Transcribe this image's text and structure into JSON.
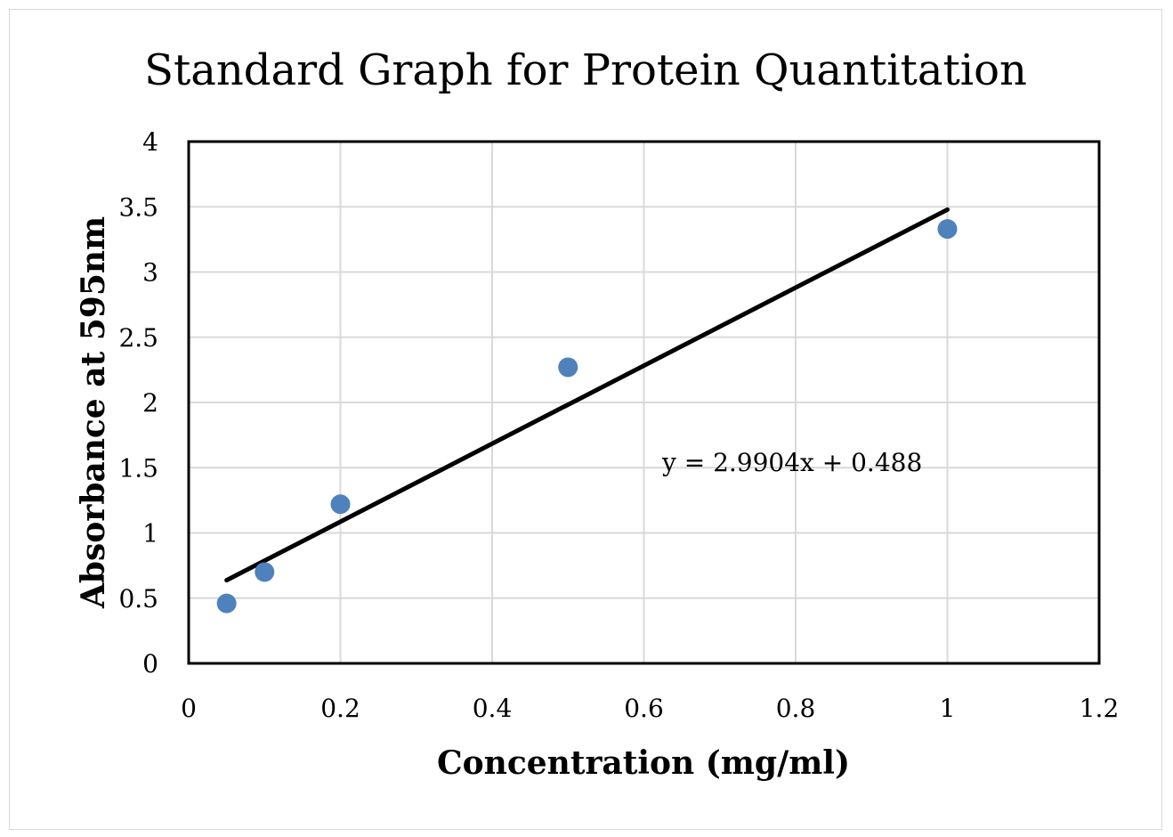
{
  "chart_data": {
    "type": "scatter",
    "title": "Standard Graph for Protein Quantitation",
    "xlabel": "Concentration (mg/ml)",
    "ylabel": "Absorbance at 595nm",
    "xlim": [
      0,
      1.2
    ],
    "ylim": [
      0,
      4
    ],
    "xticks": [
      0,
      0.2,
      0.4,
      0.6,
      0.8,
      1,
      1.2
    ],
    "yticks": [
      0,
      0.5,
      1,
      1.5,
      2,
      2.5,
      3,
      3.5,
      4
    ],
    "xtick_labels": [
      "0",
      "0.2",
      "0.4",
      "0.6",
      "0.8",
      "1",
      "1.2"
    ],
    "ytick_labels": [
      "0",
      "0.5",
      "1",
      "1.5",
      "2",
      "2.5",
      "3",
      "3.5",
      "4"
    ],
    "grid": true,
    "legend": "none",
    "series": [
      {
        "x": [
          0.05,
          0.1,
          0.2,
          0.5,
          1.0
        ],
        "y": [
          0.46,
          0.7,
          1.22,
          2.27,
          3.33
        ],
        "color": "#4f81bd"
      }
    ],
    "trendline": {
      "type": "linear",
      "slope": 2.9904,
      "intercept": 0.488,
      "x_range": [
        0.05,
        1.0
      ],
      "color": "#000000",
      "equation_label": "y = 2.9904x + 0.488"
    }
  }
}
